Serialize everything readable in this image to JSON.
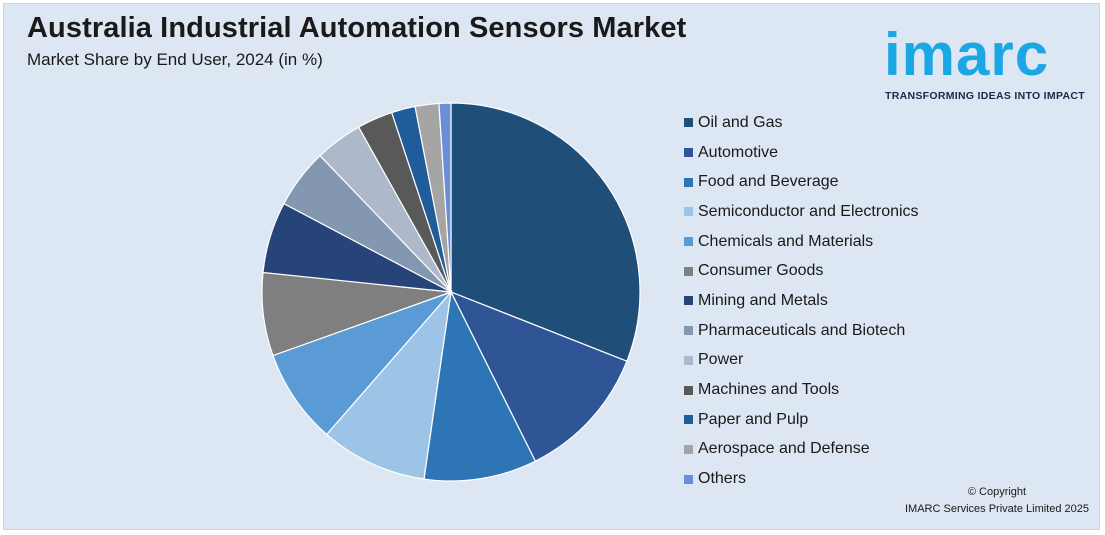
{
  "header": {
    "title": "Australia Industrial Automation Sensors Market",
    "subtitle": "Market Share by End User, 2024 (in %)"
  },
  "logo": {
    "word": "imarc",
    "tagline": "TRANSFORMING IDEAS INTO IMPACT",
    "color": "#1aa7e3"
  },
  "footer": {
    "copyright": "© Copyright",
    "owner": "IMARC Services Private Limited 2025"
  },
  "chart_data": {
    "type": "pie",
    "legend_position": "right",
    "categories": [
      "Oil and Gas",
      "Automotive",
      "Food and Beverage",
      "Semiconductor and Electronics",
      "Chemicals and Materials",
      "Consumer Goods",
      "Mining and Metals",
      "Pharmaceuticals and Biotech",
      "Power",
      "Machines and Tools",
      "Paper and Pulp",
      "Aerospace and Defense",
      "Others"
    ],
    "values": [
      30.5,
      11.5,
      9.5,
      9.0,
      8.0,
      7.0,
      6.0,
      5.0,
      4.0,
      3.0,
      2.0,
      2.0,
      1.0
    ],
    "colors": [
      "#1f4e79",
      "#2f5597",
      "#2e75b6",
      "#9dc3e6",
      "#5b9bd5",
      "#7f7f7f",
      "#264478",
      "#8497b0",
      "#adb9ca",
      "#595959",
      "#1f5c99",
      "#a5a5a5",
      "#6a8fd8"
    ]
  }
}
